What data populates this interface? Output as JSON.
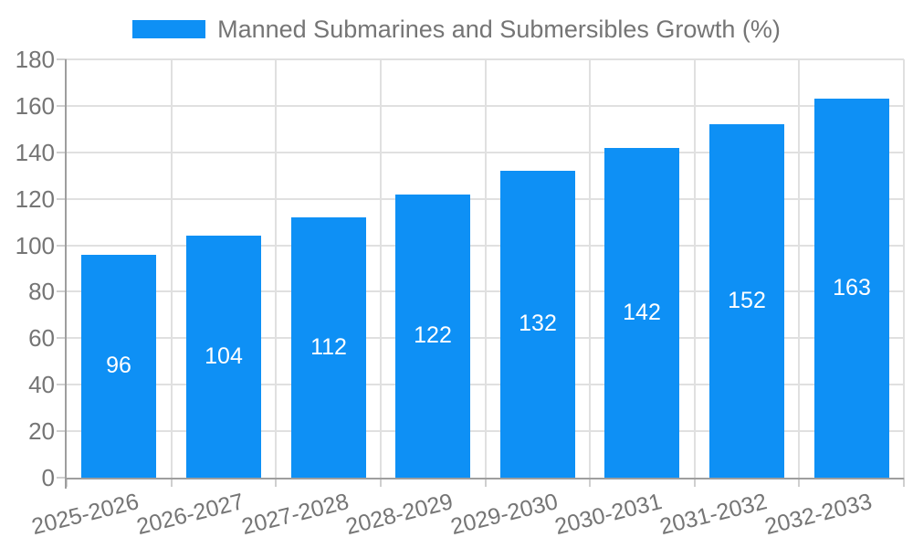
{
  "chart_data": {
    "type": "bar",
    "title": "Manned Submarines and Submersibles Growth (%)",
    "categories": [
      "2025-2026",
      "2026-2027",
      "2027-2028",
      "2028-2029",
      "2029-2030",
      "2030-2031",
      "2031-2032",
      "2032-2033"
    ],
    "values": [
      96,
      104,
      112,
      122,
      132,
      142,
      152,
      163
    ],
    "bar_value_labels": [
      "96",
      "104",
      "112",
      "122",
      "132",
      "142",
      "152",
      "163"
    ],
    "xlabel": "",
    "ylabel": "",
    "ylim": [
      0,
      180
    ],
    "yticks": [
      0,
      20,
      40,
      60,
      80,
      100,
      120,
      140,
      160,
      180
    ],
    "grid": true,
    "legend_position": "top",
    "colors": {
      "bar": "#0e90f5",
      "bar_value_text": "#ffffff",
      "axis_text": "#757575",
      "legend_text": "#757575",
      "gridline": "#e0e0e0",
      "tick": "#cfcfcf",
      "axis_line": "#9e9e9e",
      "background": "#ffffff"
    }
  }
}
